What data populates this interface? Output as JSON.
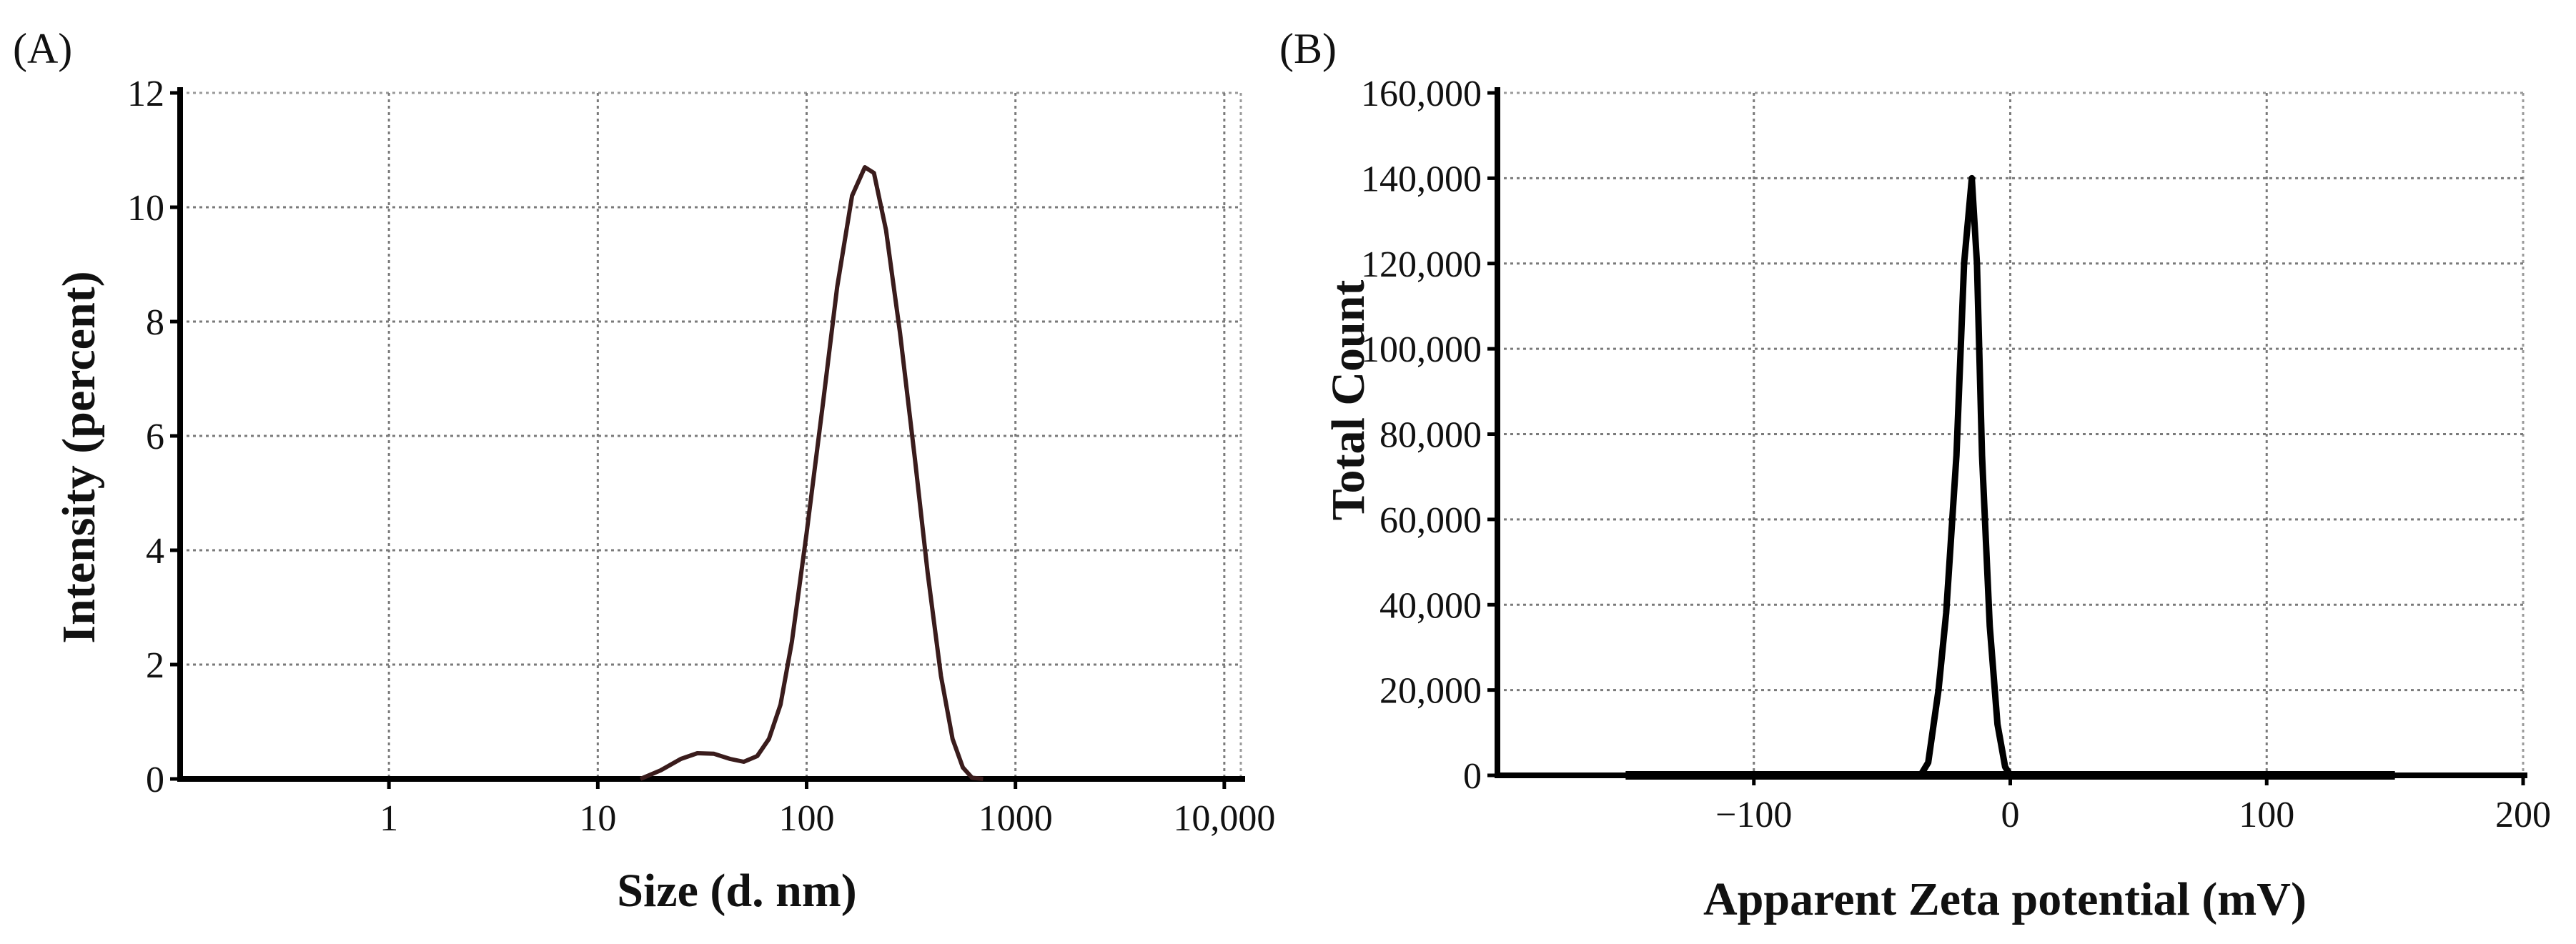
{
  "chart_data": [
    {
      "type": "line",
      "panel_label": "(A)",
      "xscale": "log",
      "xlabel": "Size (d. nm)",
      "ylabel": "Intensity (percent)",
      "xlim": [
        0.1,
        12000
      ],
      "ylim": [
        0,
        12
      ],
      "grid": true,
      "xticks": [
        {
          "value": 1,
          "label": "1"
        },
        {
          "value": 10,
          "label": "10"
        },
        {
          "value": 100,
          "label": "100"
        },
        {
          "value": 1000,
          "label": "1000"
        },
        {
          "value": 10000,
          "label": "10,000"
        }
      ],
      "yticks": [
        {
          "value": 0,
          "label": "0"
        },
        {
          "value": 2,
          "label": "2"
        },
        {
          "value": 4,
          "label": "4"
        },
        {
          "value": 6,
          "label": "6"
        },
        {
          "value": 8,
          "label": "8"
        },
        {
          "value": 10,
          "label": "10"
        },
        {
          "value": 12,
          "label": "12"
        }
      ],
      "series": [
        {
          "name": "Intensity",
          "x": [
            16,
            20,
            25,
            30,
            36,
            43,
            50,
            58,
            66,
            75,
            85,
            100,
            120,
            140,
            165,
            190,
            210,
            240,
            280,
            330,
            380,
            440,
            500,
            560,
            620,
            700
          ],
          "y": [
            0,
            0.15,
            0.35,
            0.45,
            0.44,
            0.35,
            0.3,
            0.4,
            0.7,
            1.3,
            2.4,
            4.3,
            6.6,
            8.6,
            10.2,
            10.7,
            10.6,
            9.6,
            7.8,
            5.6,
            3.6,
            1.8,
            0.7,
            0.2,
            0.02,
            0
          ]
        }
      ]
    },
    {
      "type": "line",
      "panel_label": "(B)",
      "xlabel": "Apparent Zeta potential (mV)",
      "ylabel": "Total Count",
      "xlim": [
        -200,
        200
      ],
      "ylim": [
        0,
        160000
      ],
      "grid": true,
      "xticks": [
        {
          "value": -100,
          "label": "−100"
        },
        {
          "value": 0,
          "label": "0"
        },
        {
          "value": 100,
          "label": "100"
        },
        {
          "value": 200,
          "label": "200"
        }
      ],
      "yticks": [
        {
          "value": 0,
          "label": "0"
        },
        {
          "value": 20000,
          "label": "20,000"
        },
        {
          "value": 40000,
          "label": "40,000"
        },
        {
          "value": 60000,
          "label": "60,000"
        },
        {
          "value": 80000,
          "label": "80,000"
        },
        {
          "value": 100000,
          "label": "100,000"
        },
        {
          "value": 120000,
          "label": "120,000"
        },
        {
          "value": 140000,
          "label": "140,000"
        },
        {
          "value": 160000,
          "label": "160,000"
        }
      ],
      "series": [
        {
          "name": "Total Count",
          "x": [
            -150,
            -35,
            -32,
            -28,
            -25,
            -21,
            -18,
            -15,
            -13,
            -11,
            -8,
            -5,
            -2,
            0,
            150
          ],
          "y": [
            0,
            0,
            3000,
            20000,
            38000,
            75000,
            120000,
            140000,
            120000,
            75000,
            35000,
            12000,
            2000,
            0,
            0
          ]
        }
      ]
    }
  ]
}
